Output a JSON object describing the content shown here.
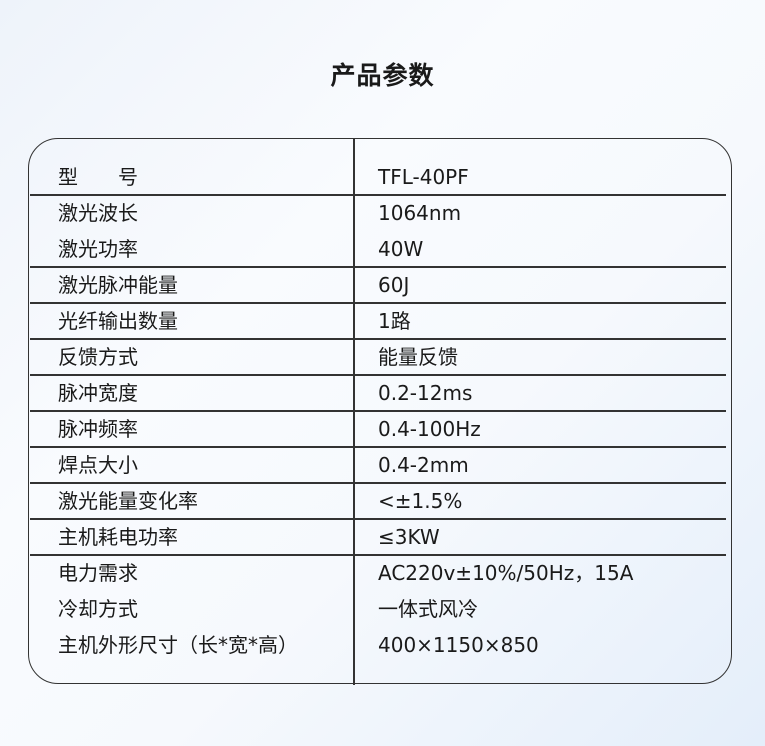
{
  "title": "产品参数",
  "groups": [
    [
      {
        "label": "型　　号",
        "value": "TFL-40PF"
      }
    ],
    [
      {
        "label": "激光波长",
        "value": "1064nm"
      },
      {
        "label": "激光功率",
        "value": "40W"
      }
    ],
    [
      {
        "label": "激光脉冲能量",
        "value": "60J"
      }
    ],
    [
      {
        "label": "光纤输出数量",
        "value": "1路"
      }
    ],
    [
      {
        "label": "反馈方式",
        "value": "能量反馈"
      }
    ],
    [
      {
        "label": "脉冲宽度",
        "value": "0.2-12ms"
      }
    ],
    [
      {
        "label": "脉冲频率",
        "value": "0.4-100Hz"
      }
    ],
    [
      {
        "label": "焊点大小",
        "value": "0.4-2mm"
      }
    ],
    [
      {
        "label": "激光能量变化率",
        "value": "<±1.5%"
      }
    ],
    [
      {
        "label": "主机耗电功率",
        "value": "≤3KW"
      }
    ],
    [
      {
        "label": "电力需求",
        "value": "AC220v±10%/50Hz，15A"
      },
      {
        "label": "冷却方式",
        "value": "一体式风冷"
      },
      {
        "label": "主机外形尺寸（长*宽*高）",
        "value": "400×1150×850"
      }
    ]
  ]
}
